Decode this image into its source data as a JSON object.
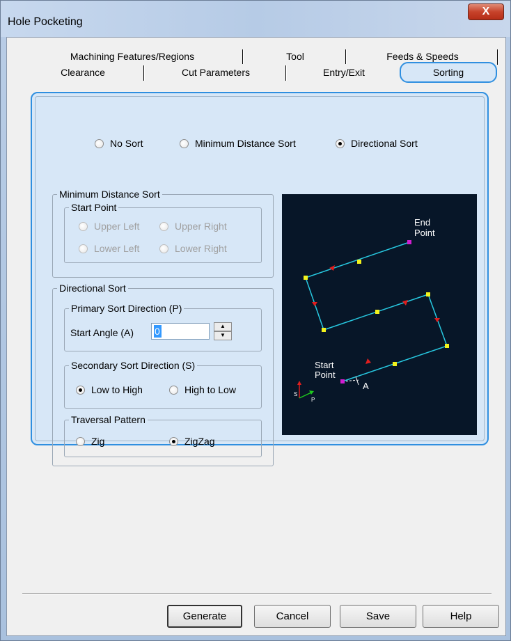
{
  "window": {
    "title": "Hole Pocketing",
    "close_glyph": "X",
    "accent": "#2f8fe0"
  },
  "tabs_row1": [
    {
      "label": "Machining Features/Regions"
    },
    {
      "label": "Tool"
    },
    {
      "label": "Feeds & Speeds"
    }
  ],
  "tabs_row2": [
    {
      "label": "Clearance"
    },
    {
      "label": "Cut Parameters"
    },
    {
      "label": "Entry/Exit"
    },
    {
      "label": "Sorting",
      "active": true
    }
  ],
  "sort_mode": {
    "options": [
      "No Sort",
      "Minimum Distance Sort",
      "Directional Sort"
    ],
    "selected": "Directional Sort"
  },
  "min_distance_group": {
    "title": "Minimum Distance Sort",
    "start_point_title": "Start Point",
    "options": [
      "Upper Left",
      "Upper Right",
      "Lower Left",
      "Lower Right"
    ],
    "disabled": true
  },
  "directional_group": {
    "title": "Directional Sort",
    "primary": {
      "title": "Primary Sort Direction (P)",
      "start_angle_label": "Start Angle (A)",
      "start_angle_value": "0",
      "spin_up": "▲",
      "spin_down": "▼"
    },
    "secondary": {
      "title": "Secondary Sort Direction (S)",
      "options": [
        "Low to High",
        "High to Low"
      ],
      "selected": "Low to High"
    },
    "traversal": {
      "title": "Traversal Pattern",
      "options": [
        "Zig",
        "ZigZag"
      ],
      "selected": "ZigZag"
    }
  },
  "preview": {
    "end_label_1": "End",
    "end_label_2": "Point",
    "start_label_1": "Start",
    "start_label_2": "Point",
    "angle_label": "A",
    "axis_s": "S",
    "axis_p": "P",
    "path_color": "#27c8e0",
    "node_color": "#f2f21c",
    "arrow_color": "#e01e1e",
    "endpoint_color": "#d01ed0"
  },
  "buttons": {
    "generate": "Generate",
    "cancel": "Cancel",
    "save": "Save",
    "help": "Help"
  }
}
